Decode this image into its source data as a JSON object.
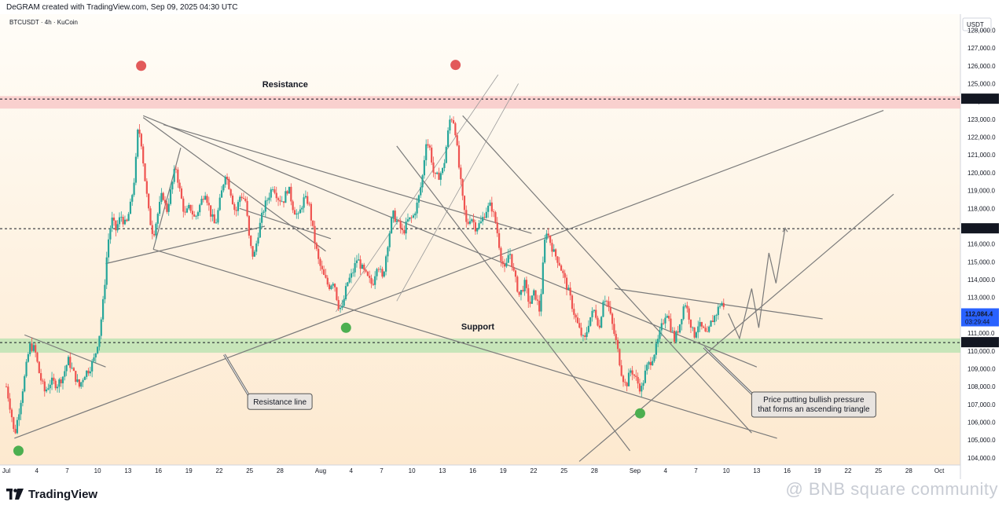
{
  "header": {
    "caption": "DeGRAM created with TradingView.com, Sep 09, 2025 04:30 UTC"
  },
  "chart_info": {
    "symbol_line": "BTCUSDT · 4h · KuCoin"
  },
  "chart_data": {
    "type": "candlestick",
    "currency_label": "USDT",
    "ylim": [
      103600,
      128900
    ],
    "y_ticks": [
      104000,
      105000,
      106000,
      107000,
      108000,
      109000,
      110000,
      111000,
      112000,
      113000,
      114000,
      115000,
      116000,
      117000,
      118000,
      119000,
      120000,
      121000,
      122000,
      123000,
      124000,
      125000,
      126000,
      127000,
      128000
    ],
    "x_range_days": [
      0,
      93
    ],
    "x_ticks": [
      {
        "day": 0,
        "label": "Jul"
      },
      {
        "day": 3,
        "label": "4"
      },
      {
        "day": 6,
        "label": "7"
      },
      {
        "day": 9,
        "label": "10"
      },
      {
        "day": 12,
        "label": "13"
      },
      {
        "day": 15,
        "label": "16"
      },
      {
        "day": 18,
        "label": "19"
      },
      {
        "day": 21,
        "label": "22"
      },
      {
        "day": 24,
        "label": "25"
      },
      {
        "day": 27,
        "label": "28"
      },
      {
        "day": 31,
        "label": "Aug"
      },
      {
        "day": 34,
        "label": "4"
      },
      {
        "day": 37,
        "label": "7"
      },
      {
        "day": 40,
        "label": "10"
      },
      {
        "day": 43,
        "label": "13"
      },
      {
        "day": 46,
        "label": "16"
      },
      {
        "day": 49,
        "label": "19"
      },
      {
        "day": 52,
        "label": "22"
      },
      {
        "day": 55,
        "label": "25"
      },
      {
        "day": 58,
        "label": "28"
      },
      {
        "day": 62,
        "label": "Sep"
      },
      {
        "day": 65,
        "label": "4"
      },
      {
        "day": 68,
        "label": "7"
      },
      {
        "day": 71,
        "label": "10"
      },
      {
        "day": 74,
        "label": "13"
      },
      {
        "day": 77,
        "label": "16"
      },
      {
        "day": 80,
        "label": "19"
      },
      {
        "day": 83,
        "label": "22"
      },
      {
        "day": 86,
        "label": "25"
      },
      {
        "day": 89,
        "label": "28"
      },
      {
        "day": 92,
        "label": "Oct"
      }
    ],
    "price_path": [
      [
        0,
        108000
      ],
      [
        0.5,
        106500
      ],
      [
        0.8,
        105200
      ],
      [
        1.3,
        106800
      ],
      [
        1.8,
        108500
      ],
      [
        2.3,
        110300
      ],
      [
        2.8,
        110100
      ],
      [
        3.3,
        108600
      ],
      [
        3.8,
        107700
      ],
      [
        4.4,
        108300
      ],
      [
        5.0,
        108100
      ],
      [
        5.6,
        108600
      ],
      [
        6.1,
        109500
      ],
      [
        6.6,
        108800
      ],
      [
        7.2,
        108000
      ],
      [
        7.7,
        108700
      ],
      [
        8.2,
        109000
      ],
      [
        8.7,
        109600
      ],
      [
        9.2,
        111000
      ],
      [
        9.6,
        113000
      ],
      [
        10.0,
        116000
      ],
      [
        10.4,
        117400
      ],
      [
        10.8,
        116800
      ],
      [
        11.3,
        117600
      ],
      [
        11.8,
        117000
      ],
      [
        12.3,
        118300
      ],
      [
        12.7,
        120000
      ],
      [
        13.0,
        122600
      ],
      [
        13.3,
        121800
      ],
      [
        13.7,
        119500
      ],
      [
        14.1,
        117500
      ],
      [
        14.5,
        116500
      ],
      [
        14.9,
        117600
      ],
      [
        15.4,
        118900
      ],
      [
        15.8,
        117800
      ],
      [
        16.3,
        119200
      ],
      [
        16.7,
        120400
      ],
      [
        17.1,
        119000
      ],
      [
        17.6,
        117600
      ],
      [
        18.1,
        118100
      ],
      [
        18.6,
        117400
      ],
      [
        19.1,
        118200
      ],
      [
        19.6,
        119000
      ],
      [
        20.1,
        117800
      ],
      [
        20.6,
        117000
      ],
      [
        21.1,
        118500
      ],
      [
        21.6,
        120000
      ],
      [
        22.1,
        119000
      ],
      [
        22.6,
        117700
      ],
      [
        23.1,
        118800
      ],
      [
        23.6,
        118400
      ],
      [
        24.0,
        116000
      ],
      [
        24.4,
        115200
      ],
      [
        24.9,
        116800
      ],
      [
        25.4,
        118000
      ],
      [
        25.8,
        118600
      ],
      [
        26.3,
        119300
      ],
      [
        26.8,
        118600
      ],
      [
        27.3,
        118400
      ],
      [
        27.8,
        119200
      ],
      [
        28.3,
        118000
      ],
      [
        28.8,
        117500
      ],
      [
        29.3,
        118500
      ],
      [
        29.8,
        118400
      ],
      [
        30.4,
        116200
      ],
      [
        30.8,
        115000
      ],
      [
        31.3,
        114200
      ],
      [
        31.8,
        113600
      ],
      [
        32.3,
        114000
      ],
      [
        32.7,
        112600
      ],
      [
        33.1,
        112300
      ],
      [
        33.6,
        113800
      ],
      [
        34.1,
        114300
      ],
      [
        34.6,
        115200
      ],
      [
        35.1,
        114600
      ],
      [
        35.6,
        114100
      ],
      [
        36.1,
        113700
      ],
      [
        36.6,
        115000
      ],
      [
        37.1,
        114000
      ],
      [
        37.6,
        116000
      ],
      [
        38.1,
        117700
      ],
      [
        38.6,
        117200
      ],
      [
        39.1,
        116600
      ],
      [
        39.6,
        117300
      ],
      [
        40.1,
        117500
      ],
      [
        40.6,
        118400
      ],
      [
        41.0,
        119600
      ],
      [
        41.4,
        121800
      ],
      [
        41.8,
        121300
      ],
      [
        42.2,
        119700
      ],
      [
        42.6,
        119800
      ],
      [
        43.1,
        120200
      ],
      [
        43.5,
        122000
      ],
      [
        43.8,
        123200
      ],
      [
        44.2,
        122800
      ],
      [
        44.6,
        120500
      ],
      [
        45.0,
        118500
      ],
      [
        45.4,
        117000
      ],
      [
        45.8,
        117600
      ],
      [
        46.3,
        116900
      ],
      [
        46.8,
        117200
      ],
      [
        47.3,
        117900
      ],
      [
        47.8,
        118200
      ],
      [
        48.3,
        117100
      ],
      [
        48.8,
        115200
      ],
      [
        49.2,
        114400
      ],
      [
        49.6,
        115700
      ],
      [
        50.1,
        114200
      ],
      [
        50.6,
        113100
      ],
      [
        51.1,
        113800
      ],
      [
        51.6,
        112600
      ],
      [
        52.1,
        113300
      ],
      [
        52.6,
        112200
      ],
      [
        52.9,
        114600
      ],
      [
        53.2,
        116900
      ],
      [
        53.6,
        116200
      ],
      [
        54.0,
        115500
      ],
      [
        54.5,
        115000
      ],
      [
        55.0,
        114100
      ],
      [
        55.5,
        113200
      ],
      [
        56.0,
        112100
      ],
      [
        56.5,
        111200
      ],
      [
        57.0,
        110500
      ],
      [
        57.5,
        111800
      ],
      [
        58.0,
        112300
      ],
      [
        58.5,
        111300
      ],
      [
        58.9,
        113100
      ],
      [
        59.3,
        112700
      ],
      [
        59.7,
        111600
      ],
      [
        60.2,
        110300
      ],
      [
        60.7,
        108700
      ],
      [
        61.1,
        108000
      ],
      [
        61.6,
        109000
      ],
      [
        62.1,
        108400
      ],
      [
        62.6,
        107800
      ],
      [
        63.1,
        109000
      ],
      [
        63.6,
        109500
      ],
      [
        64.1,
        110200
      ],
      [
        64.6,
        111300
      ],
      [
        65.1,
        112300
      ],
      [
        65.5,
        111400
      ],
      [
        65.9,
        110600
      ],
      [
        66.4,
        111500
      ],
      [
        66.9,
        112800
      ],
      [
        67.3,
        112000
      ],
      [
        67.8,
        110800
      ],
      [
        68.2,
        111500
      ],
      [
        68.7,
        111200
      ],
      [
        69.1,
        110800
      ],
      [
        69.5,
        111600
      ],
      [
        70.0,
        112100
      ],
      [
        70.5,
        112800
      ],
      [
        70.9,
        112100
      ]
    ]
  },
  "levels": {
    "resistance_label": "Resistance",
    "support_label": "Support",
    "resistance_zone": [
      123600,
      124300
    ],
    "support_zone": [
      109900,
      110700
    ],
    "resistance_value": 124134.1,
    "resistance_value_label": "124,134.1",
    "mid_value": 116860.0,
    "mid_value_label": "116,860.0",
    "support_value": 110470.9,
    "support_value_label": "110,470.9",
    "current_price": 112084.4,
    "current_price_label": "112,084.4",
    "countdown_label": "03:29:44"
  },
  "drawn_lines": [
    {
      "from": [
        13.5,
        123100
      ],
      "to": [
        31.5,
        115600
      ]
    },
    {
      "from": [
        14.5,
        115700
      ],
      "to": [
        76.0,
        105100
      ]
    },
    {
      "from": [
        0.8,
        105100
      ],
      "to": [
        86.5,
        123500
      ]
    },
    {
      "from": [
        9.8,
        114900
      ],
      "to": [
        25.5,
        117000
      ]
    },
    {
      "from": [
        14.5,
        115700
      ],
      "to": [
        17.2,
        121400
      ]
    },
    {
      "from": [
        15.5,
        122700
      ],
      "to": [
        51.8,
        116600
      ]
    },
    {
      "from": [
        13.5,
        123200
      ],
      "to": [
        74.0,
        109100
      ]
    },
    {
      "from": [
        23.0,
        118000
      ],
      "to": [
        32.0,
        116300
      ]
    },
    {
      "from": [
        38.5,
        112800
      ],
      "to": [
        50.5,
        125000
      ]
    },
    {
      "from": [
        32.5,
        112200
      ],
      "to": [
        48.5,
        125500
      ]
    },
    {
      "from": [
        45.0,
        123200
      ],
      "to": [
        73.5,
        105400
      ]
    },
    {
      "from": [
        38.5,
        121500
      ],
      "to": [
        61.5,
        104400
      ]
    },
    {
      "from": [
        60.0,
        113500
      ],
      "to": [
        80.5,
        111800
      ]
    },
    {
      "from": [
        56.5,
        103800
      ],
      "to": [
        87.5,
        118800
      ]
    },
    {
      "from": [
        1.8,
        110900
      ],
      "to": [
        9.8,
        109100
      ]
    }
  ],
  "projection_path": [
    [
      71.2,
      112100
    ],
    [
      72.3,
      110700
    ],
    [
      73.5,
      113500
    ],
    [
      74.2,
      111300
    ],
    [
      75.2,
      115500
    ],
    [
      75.9,
      113800
    ],
    [
      76.8,
      116900
    ]
  ],
  "markers": [
    {
      "day": 13.3,
      "price": 126000,
      "color": "#e25a5a"
    },
    {
      "day": 44.3,
      "price": 126050,
      "color": "#e25a5a"
    },
    {
      "day": 33.5,
      "price": 111300,
      "color": "#4caf50"
    },
    {
      "day": 62.5,
      "price": 106500,
      "color": "#4caf50"
    },
    {
      "day": 1.2,
      "price": 104400,
      "color": "#4caf50"
    }
  ],
  "callouts": [
    {
      "text": "Resistance line",
      "lines": [
        "Resistance line"
      ]
    },
    {
      "text": "Price putting bullish pressure that forms an ascending triangle",
      "lines": [
        "Price putting bullish pressure",
        "that forms an ascending triangle"
      ]
    }
  ],
  "footer": {
    "brand": "TradingView",
    "watermark": "@ BNB square community"
  }
}
